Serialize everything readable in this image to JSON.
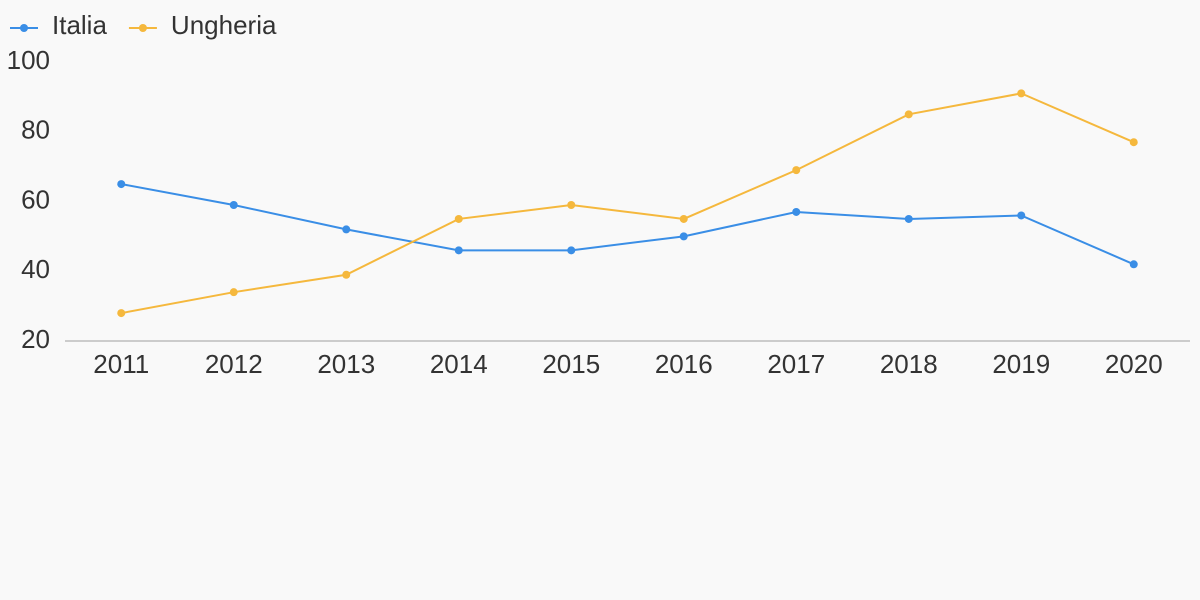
{
  "chart_data": {
    "type": "line",
    "categories": [
      "2011",
      "2012",
      "2013",
      "2014",
      "2015",
      "2016",
      "2017",
      "2018",
      "2019",
      "2020"
    ],
    "series": [
      {
        "name": "Italia",
        "color": "#3a8ee6",
        "values": [
          65,
          59,
          52,
          46,
          46,
          50,
          57,
          55,
          56,
          42
        ]
      },
      {
        "name": "Ungheria",
        "color": "#f5b83d",
        "values": [
          28,
          34,
          39,
          55,
          59,
          55,
          69,
          85,
          91,
          77
        ]
      }
    ],
    "ylim": [
      20,
      100
    ],
    "yticks": [
      20,
      40,
      60,
      80,
      100
    ],
    "grid": false
  }
}
